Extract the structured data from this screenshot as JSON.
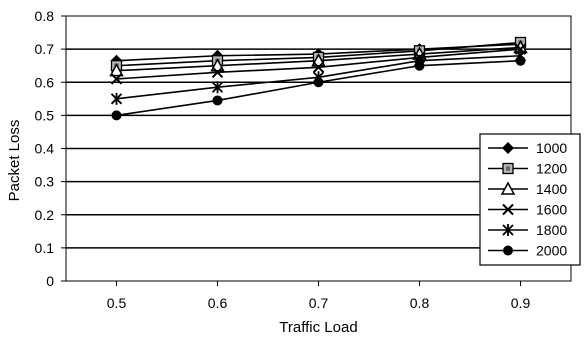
{
  "chart_data": {
    "type": "line",
    "title": "",
    "xlabel": "Traffic Load",
    "ylabel": "Packet Loss",
    "x": [
      0.5,
      0.6,
      0.7,
      0.8,
      0.9
    ],
    "x_tick_labels": [
      "0.5",
      "0.6",
      "0.7",
      "0.8",
      "0.9"
    ],
    "xlim": [
      0.45,
      0.95
    ],
    "ylim": [
      0,
      0.8
    ],
    "y_ticks": [
      0,
      0.1,
      0.2,
      0.3,
      0.4,
      0.5,
      0.6,
      0.7,
      0.8
    ],
    "y_tick_labels": [
      "0",
      "0.1",
      "0.2",
      "0.3",
      "0.4",
      "0.5",
      "0.6",
      "0.7",
      "0.8"
    ],
    "grid": "horizontal",
    "legend_position": "right",
    "series": [
      {
        "name": "1000",
        "marker": "diamond-filled",
        "values": [
          0.665,
          0.68,
          0.685,
          0.7,
          0.715
        ]
      },
      {
        "name": "1200",
        "marker": "square-hatched",
        "values": [
          0.65,
          0.665,
          0.675,
          0.695,
          0.72
        ]
      },
      {
        "name": "1400",
        "marker": "triangle-open",
        "values": [
          0.635,
          0.65,
          0.665,
          0.685,
          0.705
        ]
      },
      {
        "name": "1600",
        "marker": "x",
        "values": [
          0.61,
          0.63,
          0.645,
          0.675,
          0.7
        ]
      },
      {
        "name": "1800",
        "marker": "asterisk",
        "values": [
          0.55,
          0.585,
          0.615,
          0.665,
          0.68
        ]
      },
      {
        "name": "2000",
        "marker": "circle-filled",
        "values": [
          0.5,
          0.545,
          0.6,
          0.65,
          0.665
        ]
      }
    ]
  }
}
